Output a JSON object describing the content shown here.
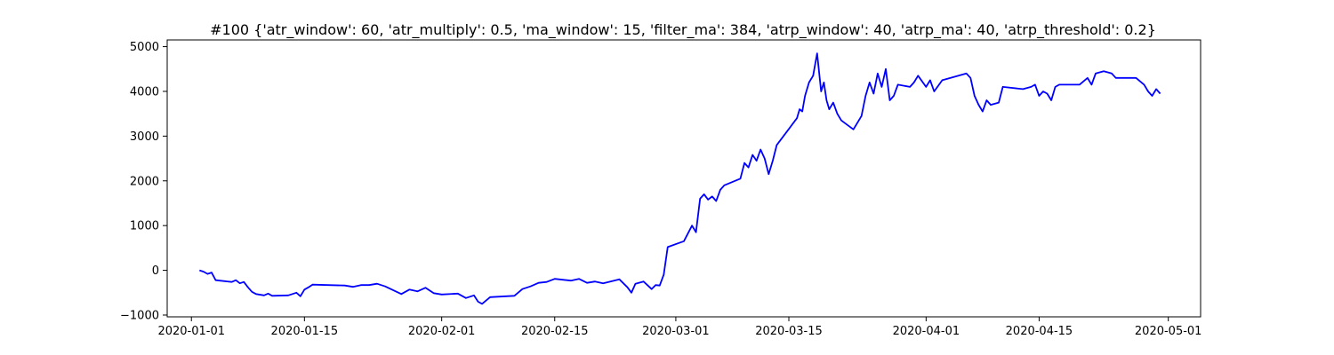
{
  "chart_data": {
    "type": "line",
    "title": "#100 {'atr_window': 60, 'atr_multiply': 0.5, 'ma_window': 15, 'filter_ma': 384, 'atrp_window': 40, 'atrp_ma': 40, 'atrp_threshold': 0.2}",
    "xlabel": "",
    "ylabel": "",
    "grid": false,
    "legend": "none",
    "line_color": "#0000ff",
    "x_axis": {
      "type": "date",
      "range": [
        "2019-12-29",
        "2020-05-05"
      ],
      "ticks": [
        "2020-01-01",
        "2020-01-15",
        "2020-02-01",
        "2020-02-15",
        "2020-03-01",
        "2020-03-15",
        "2020-04-01",
        "2020-04-15",
        "2020-05-01"
      ]
    },
    "y_axis": {
      "range": [
        -1040,
        5150
      ],
      "ticks": [
        -1000,
        0,
        1000,
        2000,
        3000,
        4000,
        5000
      ]
    },
    "series": [
      {
        "x": [
          "2020-01-02",
          "2020-01-02",
          "2020-01-03",
          "2020-01-03",
          "2020-01-04",
          "2020-01-06",
          "2020-01-06",
          "2020-01-07",
          "2020-01-07",
          "2020-01-08",
          "2020-01-08",
          "2020-01-09",
          "2020-01-10",
          "2020-01-10",
          "2020-01-11",
          "2020-01-13",
          "2020-01-14",
          "2020-01-14",
          "2020-01-15",
          "2020-01-15",
          "2020-01-16",
          "2020-01-20",
          "2020-01-21",
          "2020-01-22",
          "2020-01-23",
          "2020-01-24",
          "2020-01-25",
          "2020-01-27",
          "2020-01-28",
          "2020-01-29",
          "2020-01-30",
          "2020-01-31",
          "2020-02-01",
          "2020-02-03",
          "2020-02-04",
          "2020-02-05",
          "2020-02-05",
          "2020-02-06",
          "2020-02-07",
          "2020-02-09",
          "2020-02-10",
          "2020-02-11",
          "2020-02-12",
          "2020-02-13",
          "2020-02-14",
          "2020-02-15",
          "2020-02-17",
          "2020-02-18",
          "2020-02-19",
          "2020-02-20",
          "2020-02-21",
          "2020-02-23",
          "2020-02-24",
          "2020-02-24",
          "2020-02-25",
          "2020-02-26",
          "2020-02-27",
          "2020-02-27",
          "2020-02-28",
          "2020-02-28",
          "2020-02-29",
          "2020-03-02",
          "2020-03-03",
          "2020-03-03",
          "2020-03-04",
          "2020-03-04",
          "2020-03-05",
          "2020-03-05",
          "2020-03-06",
          "2020-03-06",
          "2020-03-07",
          "2020-03-09",
          "2020-03-09",
          "2020-03-10",
          "2020-03-10",
          "2020-03-11",
          "2020-03-11",
          "2020-03-12",
          "2020-03-12",
          "2020-03-13",
          "2020-03-13",
          "2020-03-16",
          "2020-03-16",
          "2020-03-16",
          "2020-03-17",
          "2020-03-17",
          "2020-03-18",
          "2020-03-18",
          "2020-03-19",
          "2020-03-19",
          "2020-03-19",
          "2020-03-20",
          "2020-03-20",
          "2020-03-21",
          "2020-03-21",
          "2020-03-23",
          "2020-03-24",
          "2020-03-24",
          "2020-03-25",
          "2020-03-25",
          "2020-03-26",
          "2020-03-26",
          "2020-03-27",
          "2020-03-27",
          "2020-03-28",
          "2020-03-28",
          "2020-03-30",
          "2020-03-30",
          "2020-03-31",
          "2020-04-01",
          "2020-04-01",
          "2020-04-02",
          "2020-04-03",
          "2020-04-06",
          "2020-04-06",
          "2020-04-07",
          "2020-04-07",
          "2020-04-08",
          "2020-04-08",
          "2020-04-09",
          "2020-04-10",
          "2020-04-10",
          "2020-04-13",
          "2020-04-14",
          "2020-04-14",
          "2020-04-15",
          "2020-04-15",
          "2020-04-16",
          "2020-04-16",
          "2020-04-17",
          "2020-04-17",
          "2020-04-20",
          "2020-04-21",
          "2020-04-21",
          "2020-04-22",
          "2020-04-23",
          "2020-04-24",
          "2020-04-24",
          "2020-04-27",
          "2020-04-28",
          "2020-04-28",
          "2020-04-29",
          "2020-04-29",
          "2020-04-30"
        ],
        "y": [
          0,
          -30,
          -80,
          -50,
          -220,
          -260,
          -220,
          -290,
          -260,
          -380,
          -480,
          -530,
          -560,
          -520,
          -570,
          -560,
          -500,
          -580,
          -430,
          -380,
          -320,
          -340,
          -370,
          -330,
          -330,
          -300,
          -360,
          -530,
          -430,
          -470,
          -390,
          -510,
          -540,
          -520,
          -620,
          -560,
          -700,
          -750,
          -600,
          -580,
          -570,
          -420,
          -360,
          -280,
          -260,
          -190,
          -230,
          -190,
          -280,
          -250,
          -290,
          -200,
          -380,
          -500,
          -300,
          -250,
          -420,
          -330,
          -340,
          -100,
          520,
          650,
          1000,
          850,
          1600,
          1700,
          1580,
          1650,
          1550,
          1800,
          1900,
          2050,
          2400,
          2300,
          2580,
          2450,
          2700,
          2500,
          2150,
          2450,
          2800,
          3400,
          3600,
          3550,
          3900,
          4200,
          4350,
          4850,
          4000,
          4200,
          3800,
          3600,
          3750,
          3500,
          3350,
          3150,
          3450,
          3900,
          4200,
          3950,
          4400,
          4100,
          4500,
          3800,
          3900,
          4150,
          4100,
          4200,
          4350,
          4100,
          4250,
          4000,
          4250,
          4400,
          4300,
          3900,
          3700,
          3550,
          3800,
          3700,
          3750,
          4100,
          4050,
          4100,
          4150,
          3900,
          4000,
          3950,
          3800,
          4100,
          4150,
          4150,
          4300,
          4150,
          4400,
          4450,
          4400,
          4300,
          4300,
          4150,
          4000,
          3900,
          4050,
          3950
        ]
      }
    ]
  }
}
